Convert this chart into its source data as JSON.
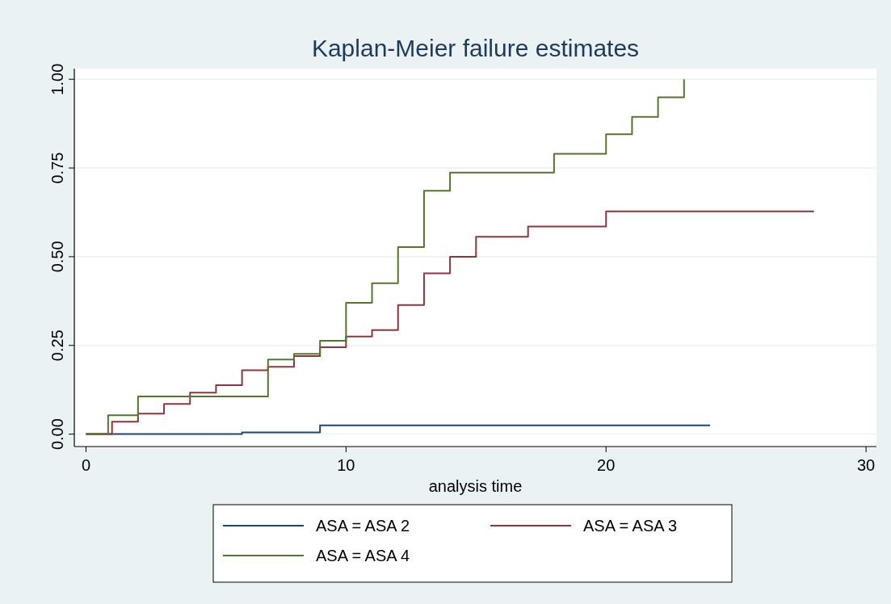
{
  "chart_data": {
    "type": "step",
    "title": "Kaplan-Meier failure estimates",
    "xlabel": "analysis time",
    "xlim": [
      -0.45,
      30.4
    ],
    "xticks": [
      0,
      10,
      20,
      30
    ],
    "ylim": [
      -0.035,
      1.03
    ],
    "yticks": [
      {
        "value": 0,
        "label": "0.00"
      },
      {
        "value": 0.25,
        "label": "0.25"
      },
      {
        "value": 0.5,
        "label": "0.50"
      },
      {
        "value": 0.75,
        "label": "0.75"
      },
      {
        "value": 1,
        "label": "1.00"
      }
    ],
    "grid": "y",
    "legend": "bottom",
    "series": [
      {
        "name": "ASA = ASA 2",
        "color": "#1a476f",
        "x": [
          0,
          6,
          9,
          24
        ],
        "values": [
          0,
          0.005,
          0.025,
          0.025
        ]
      },
      {
        "name": "ASA = ASA 3",
        "color": "#90353b",
        "x": [
          0,
          1,
          2,
          3,
          4,
          5,
          6,
          7,
          8,
          9,
          10,
          11,
          12,
          13,
          14,
          15,
          17,
          20,
          28
        ],
        "values": [
          0,
          0.035,
          0.058,
          0.085,
          0.117,
          0.138,
          0.18,
          0.19,
          0.22,
          0.245,
          0.275,
          0.293,
          0.364,
          0.453,
          0.5,
          0.556,
          0.585,
          0.628,
          0.628
        ]
      },
      {
        "name": "ASA = ASA 4",
        "color": "#55752f",
        "x": [
          0,
          0.85,
          2,
          7,
          8,
          9,
          10,
          11,
          12,
          13,
          14,
          18,
          20,
          21,
          22,
          23,
          23
        ],
        "values": [
          0,
          0.053,
          0.106,
          0.21,
          0.226,
          0.263,
          0.37,
          0.425,
          0.527,
          0.686,
          0.737,
          0.79,
          0.845,
          0.894,
          0.949,
          0.949,
          1.0
        ]
      }
    ]
  }
}
